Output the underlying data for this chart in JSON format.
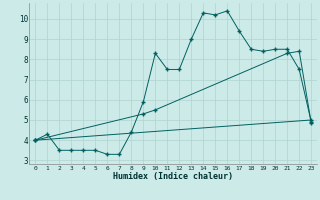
{
  "xlabel": "Humidex (Indice chaleur)",
  "bg_color": "#cceae8",
  "grid_color": "#b0d4d0",
  "line_color": "#006060",
  "xlim": [
    -0.5,
    23.5
  ],
  "ylim": [
    2.8,
    10.8
  ],
  "yticks": [
    3,
    4,
    5,
    6,
    7,
    8,
    9,
    10
  ],
  "xticks": [
    0,
    1,
    2,
    3,
    4,
    5,
    6,
    7,
    8,
    9,
    10,
    11,
    12,
    13,
    14,
    15,
    16,
    17,
    18,
    19,
    20,
    21,
    22,
    23
  ],
  "line1_x": [
    0,
    1,
    2,
    3,
    4,
    5,
    6,
    7,
    8,
    9,
    10,
    11,
    12,
    13,
    14,
    15,
    16,
    17,
    18,
    19,
    20,
    21,
    22,
    23
  ],
  "line1_y": [
    4.0,
    4.3,
    3.5,
    3.5,
    3.5,
    3.5,
    3.3,
    3.3,
    4.4,
    5.9,
    8.3,
    7.5,
    7.5,
    9.0,
    10.3,
    10.2,
    10.4,
    9.4,
    8.5,
    8.4,
    8.5,
    8.5,
    7.5,
    4.9
  ],
  "line2_x": [
    0,
    9,
    10,
    21,
    22,
    23
  ],
  "line2_y": [
    4.0,
    5.3,
    5.5,
    8.3,
    8.4,
    4.85
  ],
  "line3_x": [
    0,
    23
  ],
  "line3_y": [
    4.0,
    5.0
  ]
}
